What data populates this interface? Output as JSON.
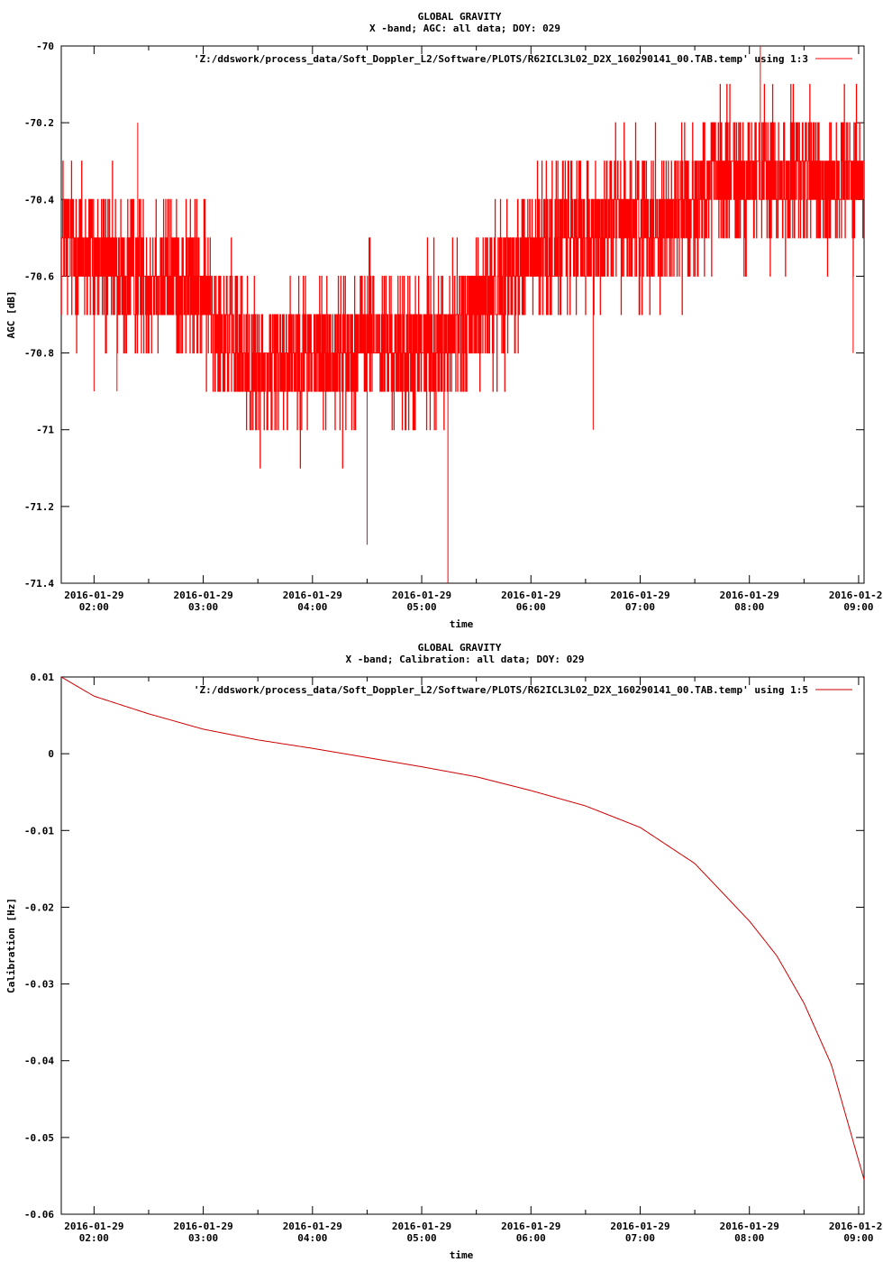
{
  "chart_data": [
    {
      "type": "line",
      "title": "GLOBAL GRAVITY",
      "subtitle": "X -band; AGC: all data; DOY: 029",
      "xlabel": "time",
      "ylabel": "AGC [dB]",
      "ylim": [
        -71.4,
        -70
      ],
      "y_ticks": [
        "-70",
        "-70.2",
        "-70.4",
        "-70.6",
        "-70.8",
        "-71",
        "-71.2",
        "-71.4"
      ],
      "y_tick_values": [
        -70,
        -70.2,
        -70.4,
        -70.6,
        -70.8,
        -71,
        -71.2,
        -71.4
      ],
      "xlim": [
        1.7,
        9.05
      ],
      "x_ticks": [
        {
          "value": 2,
          "date": "2016-01-29",
          "time": "02:00"
        },
        {
          "value": 3,
          "date": "2016-01-29",
          "time": "03:00"
        },
        {
          "value": 4,
          "date": "2016-01-29",
          "time": "04:00"
        },
        {
          "value": 5,
          "date": "2016-01-29",
          "time": "05:00"
        },
        {
          "value": 6,
          "date": "2016-01-29",
          "time": "06:00"
        },
        {
          "value": 7,
          "date": "2016-01-29",
          "time": "07:00"
        },
        {
          "value": 8,
          "date": "2016-01-29",
          "time": "08:00"
        },
        {
          "value": 9,
          "date": "2016-01-29",
          "time": "09:00"
        }
      ],
      "legend": "'Z:/ddswork/process_data/Soft_Doppler_L2/Software/PLOTS/R62ICL3L02_D2X_160290141_00.TAB.temp' using 1:3",
      "legend_position": "top-right",
      "color": "#ff0000",
      "series": [
        {
          "x": [
            1.7,
            2.0,
            2.25,
            2.5,
            2.75,
            3.0,
            3.25,
            3.5,
            3.75,
            4.0,
            4.25,
            4.5,
            4.75,
            5.0,
            5.25,
            5.5,
            5.75,
            6.0,
            6.25,
            6.5,
            6.75,
            7.0,
            7.25,
            7.5,
            7.75,
            8.0,
            8.25,
            8.5,
            8.75,
            9.05
          ],
          "values": [
            -70.5,
            -70.55,
            -70.6,
            -70.6,
            -70.6,
            -70.65,
            -70.75,
            -70.85,
            -70.8,
            -70.8,
            -70.8,
            -70.75,
            -70.8,
            -70.8,
            -70.75,
            -70.7,
            -70.6,
            -70.55,
            -70.5,
            -70.5,
            -70.45,
            -70.45,
            -70.45,
            -70.4,
            -70.35,
            -70.35,
            -70.35,
            -70.35,
            -70.35,
            -70.35
          ],
          "noise": 0.1,
          "spikes": [
            {
              "x": 2.4,
              "y": -70.2
            },
            {
              "x": 2.0,
              "y": -70.9
            },
            {
              "x": 2.21,
              "y": -70.9
            },
            {
              "x": 4.5,
              "y": -71.3
            },
            {
              "x": 5.24,
              "y": -71.4
            },
            {
              "x": 5.24,
              "y": -71.2
            },
            {
              "x": 6.57,
              "y": -71.0
            },
            {
              "x": 8.1,
              "y": -70.0
            },
            {
              "x": 8.95,
              "y": -70.8
            }
          ]
        }
      ]
    },
    {
      "type": "line",
      "title": "GLOBAL GRAVITY",
      "subtitle": "X -band; Calibration: all data; DOY: 029",
      "xlabel": "time",
      "ylabel": "Calibration [Hz]",
      "ylim": [
        -0.06,
        0.01
      ],
      "y_ticks": [
        "0.01",
        "0",
        "-0.01",
        "-0.02",
        "-0.03",
        "-0.04",
        "-0.05",
        "-0.06"
      ],
      "y_tick_values": [
        0.01,
        0,
        -0.01,
        -0.02,
        -0.03,
        -0.04,
        -0.05,
        -0.06
      ],
      "xlim": [
        1.7,
        9.05
      ],
      "x_ticks": [
        {
          "value": 2,
          "date": "2016-01-29",
          "time": "02:00"
        },
        {
          "value": 3,
          "date": "2016-01-29",
          "time": "03:00"
        },
        {
          "value": 4,
          "date": "2016-01-29",
          "time": "04:00"
        },
        {
          "value": 5,
          "date": "2016-01-29",
          "time": "05:00"
        },
        {
          "value": 6,
          "date": "2016-01-29",
          "time": "06:00"
        },
        {
          "value": 7,
          "date": "2016-01-29",
          "time": "07:00"
        },
        {
          "value": 8,
          "date": "2016-01-29",
          "time": "08:00"
        },
        {
          "value": 9,
          "date": "2016-01-29",
          "time": "09:00"
        }
      ],
      "legend": "'Z:/ddswork/process_data/Soft_Doppler_L2/Software/PLOTS/R62ICL3L02_D2X_160290141_00.TAB.temp' using 1:5",
      "legend_position": "top-right",
      "color": "#cc0000",
      "series": [
        {
          "x": [
            1.7,
            2.0,
            2.5,
            3.0,
            3.5,
            4.0,
            4.5,
            5.0,
            5.5,
            6.0,
            6.5,
            7.0,
            7.5,
            8.0,
            8.25,
            8.5,
            8.75,
            9.05
          ],
          "values": [
            0.01,
            0.0075,
            0.0052,
            0.0032,
            0.0018,
            0.0007,
            -0.0005,
            -0.0017,
            -0.003,
            -0.0048,
            -0.0068,
            -0.0096,
            -0.0143,
            -0.0218,
            -0.0263,
            -0.0325,
            -0.0405,
            -0.0555
          ]
        }
      ]
    }
  ]
}
